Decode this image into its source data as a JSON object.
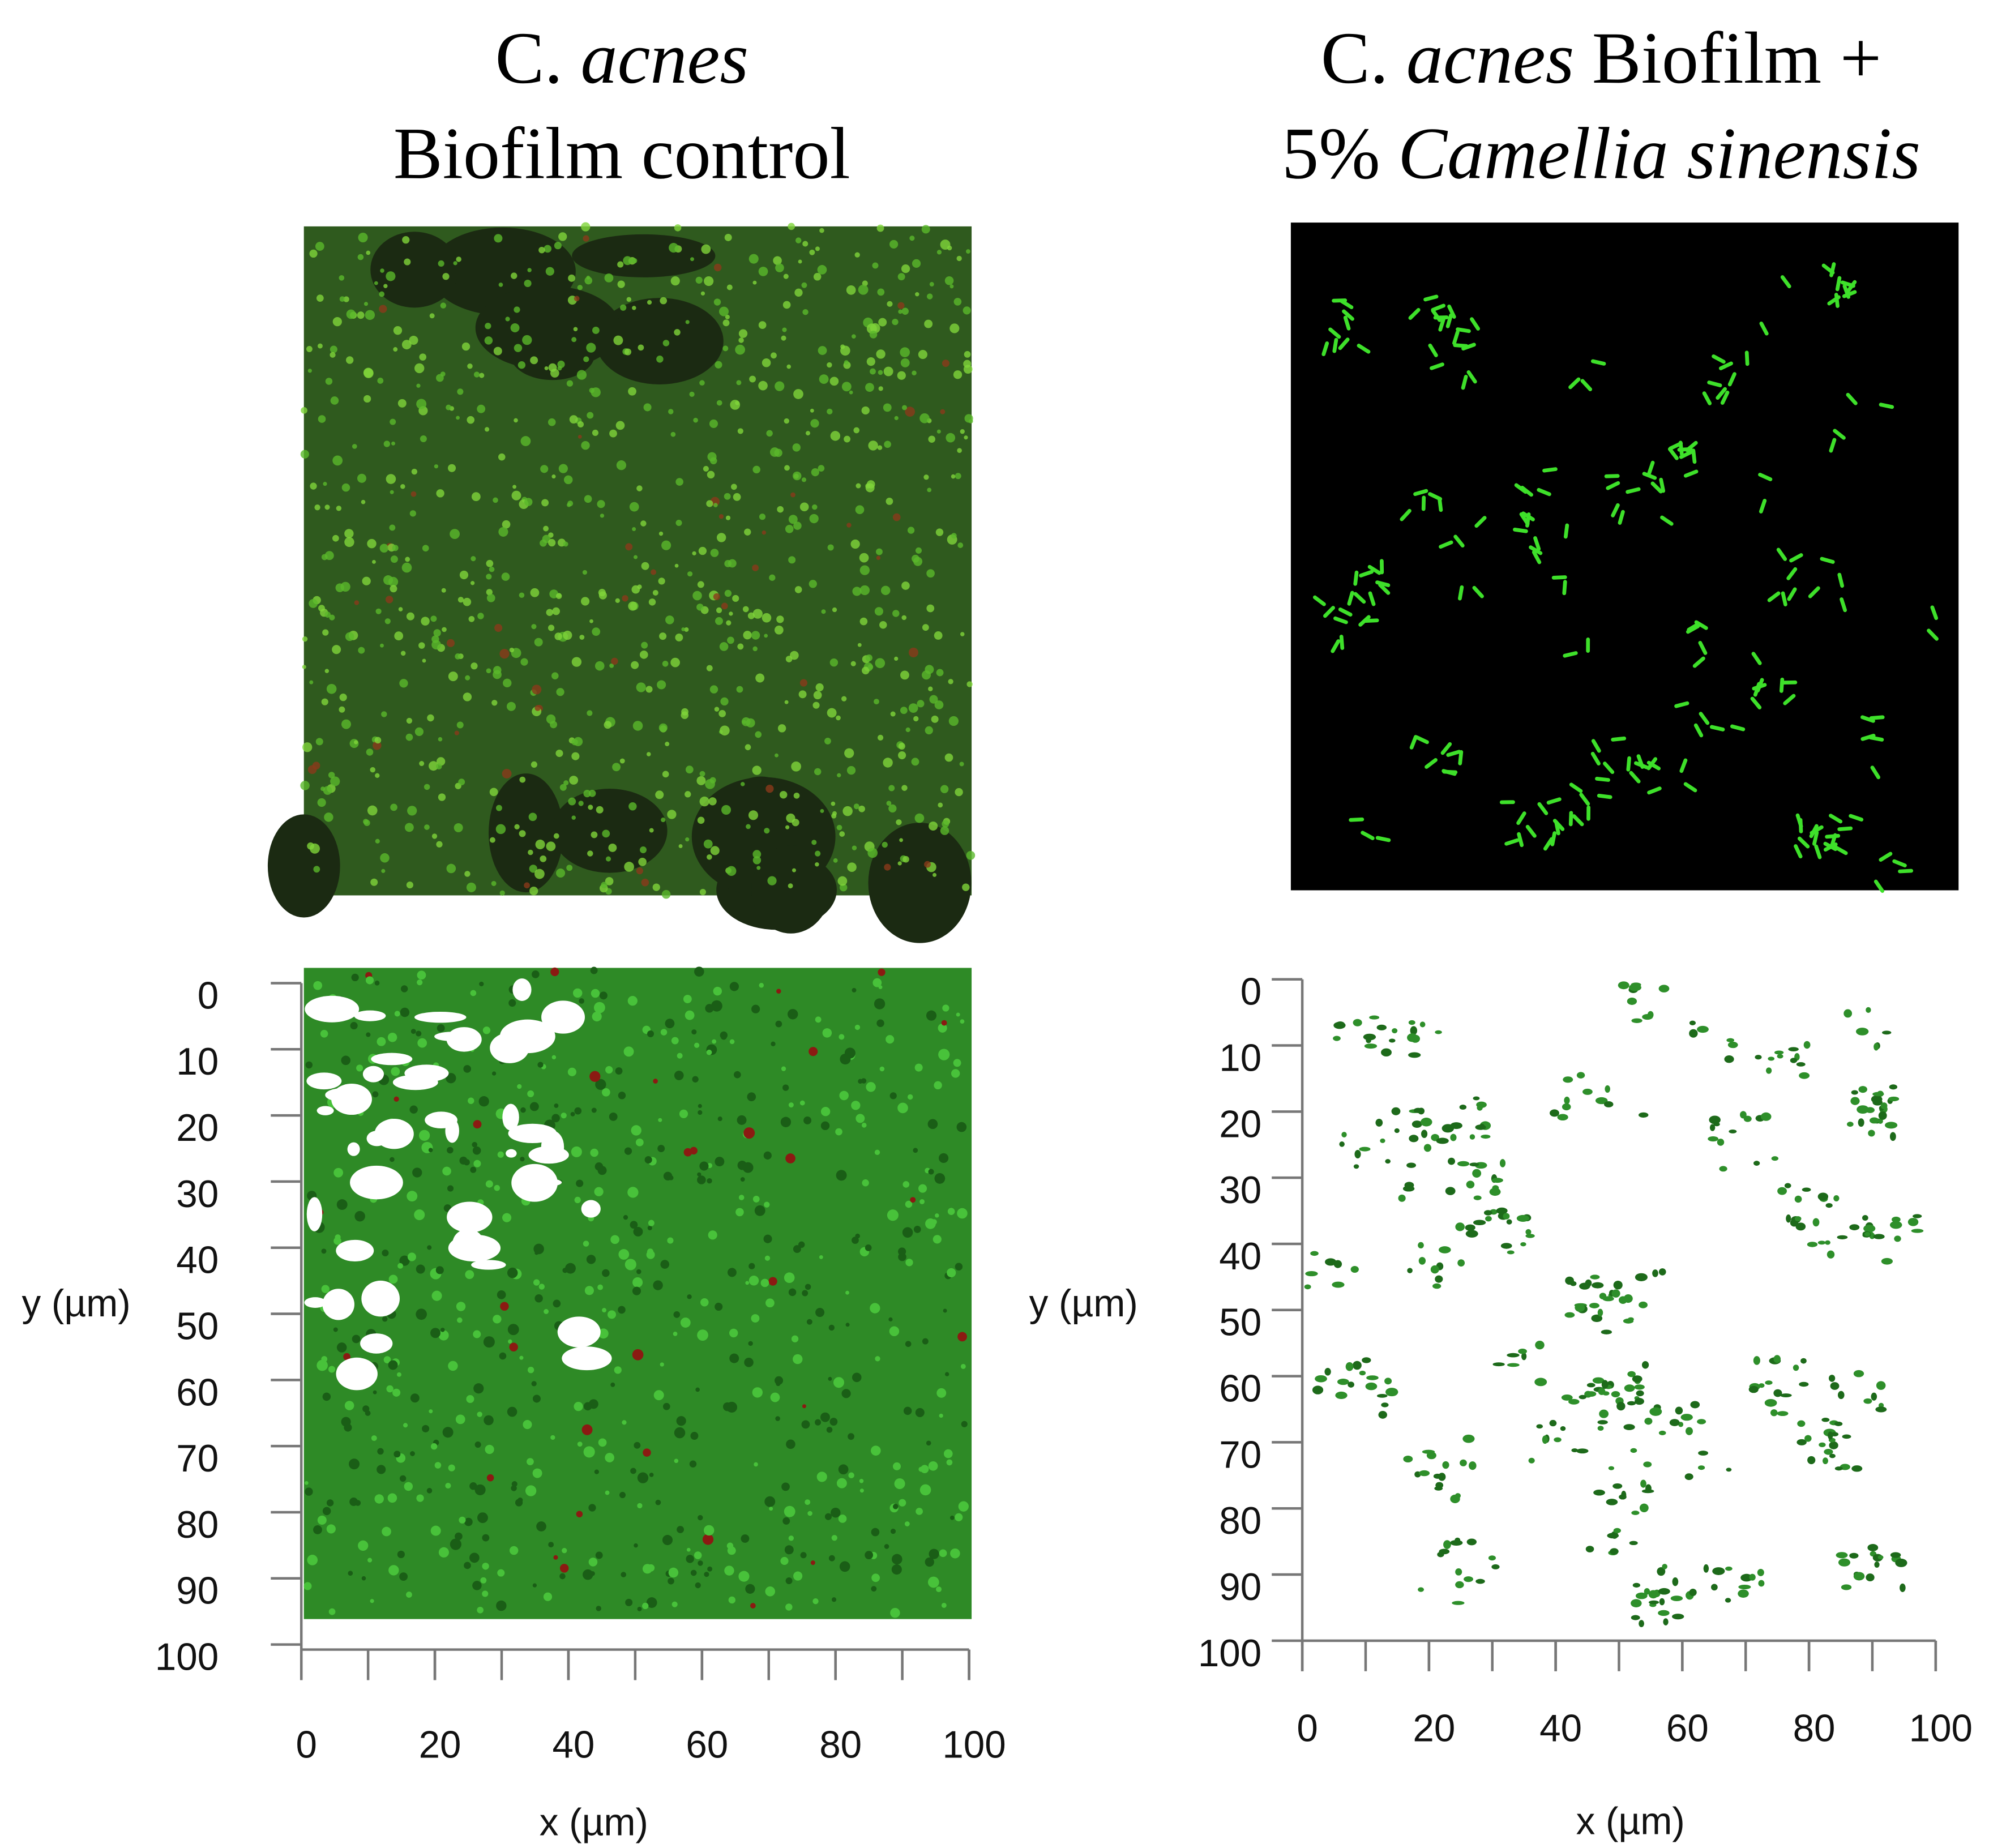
{
  "panels": [
    {
      "title_lines": [
        [
          {
            "text": "C.",
            "italic": false
          },
          {
            "text": "acnes",
            "italic": true
          }
        ],
        [
          {
            "text": "Biofilm control",
            "italic": false
          }
        ]
      ],
      "y_label": "y (µm)",
      "x_label": "x (µm)",
      "yticks": [
        0,
        10,
        20,
        30,
        40,
        50,
        60,
        70,
        80,
        90,
        100
      ],
      "xticks": [
        0,
        20,
        40,
        60,
        80,
        100
      ]
    },
    {
      "title_lines": [
        [
          {
            "text": "C.",
            "italic": false
          },
          {
            "text": "acnes",
            "italic": true
          },
          {
            "text": "Biofilm +",
            "italic": false
          }
        ],
        [
          {
            "text": "5%",
            "italic": false
          },
          {
            "text": "Camellia sinensis",
            "italic": true
          }
        ]
      ],
      "y_label": "y (µm)",
      "x_label": "x (µm)",
      "yticks": [
        0,
        10,
        20,
        30,
        40,
        50,
        60,
        70,
        80,
        90,
        100
      ],
      "xticks": [
        0,
        20,
        40,
        60,
        80,
        100
      ]
    }
  ]
}
